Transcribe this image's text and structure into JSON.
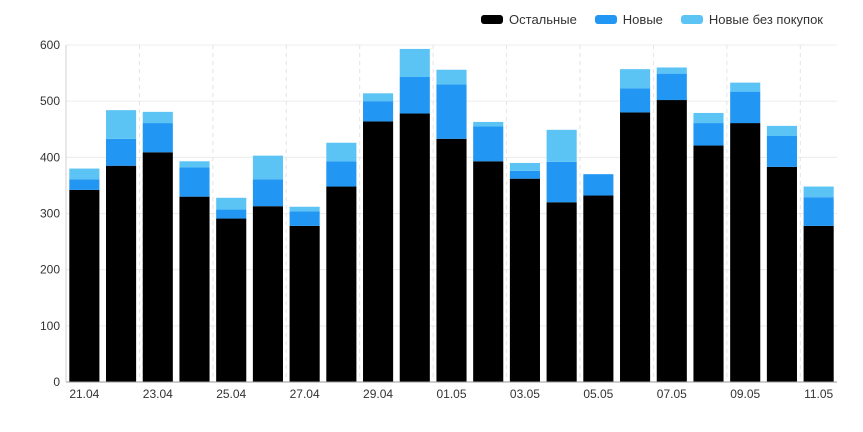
{
  "chart_data": {
    "type": "bar",
    "stacked": true,
    "categories": [
      "21.04",
      "22.04",
      "23.04",
      "24.04",
      "25.04",
      "26.04",
      "27.04",
      "28.04",
      "29.04",
      "30.04",
      "01.05",
      "02.05",
      "03.05",
      "04.05",
      "05.05",
      "06.05",
      "07.05",
      "08.05",
      "09.05",
      "10.05",
      "11.05"
    ],
    "x_tick_labels": [
      "21.04",
      "23.04",
      "25.04",
      "27.04",
      "29.04",
      "01.05",
      "03.05",
      "05.05",
      "07.05",
      "09.05",
      "11.05"
    ],
    "ylim": [
      0,
      600
    ],
    "y_ticks": [
      0,
      100,
      200,
      300,
      400,
      500,
      600
    ],
    "grid": true,
    "legend_position": "top-right",
    "series": [
      {
        "name": "Остальные",
        "color": "#000000",
        "values": [
          342,
          385,
          409,
          330,
          291,
          313,
          278,
          348,
          464,
          478,
          433,
          393,
          362,
          320,
          332,
          480,
          502,
          421,
          461,
          383,
          278
        ]
      },
      {
        "name": "Новые",
        "color": "#2196f3",
        "values": [
          19,
          48,
          52,
          52,
          16,
          48,
          26,
          45,
          36,
          65,
          97,
          62,
          14,
          72,
          38,
          43,
          47,
          40,
          56,
          55,
          51
        ]
      },
      {
        "name": "Новые без покупок",
        "color": "#5bc4f5",
        "values": [
          19,
          51,
          20,
          11,
          21,
          42,
          8,
          33,
          14,
          50,
          26,
          8,
          14,
          57,
          0,
          34,
          11,
          18,
          16,
          18,
          19
        ]
      }
    ]
  }
}
